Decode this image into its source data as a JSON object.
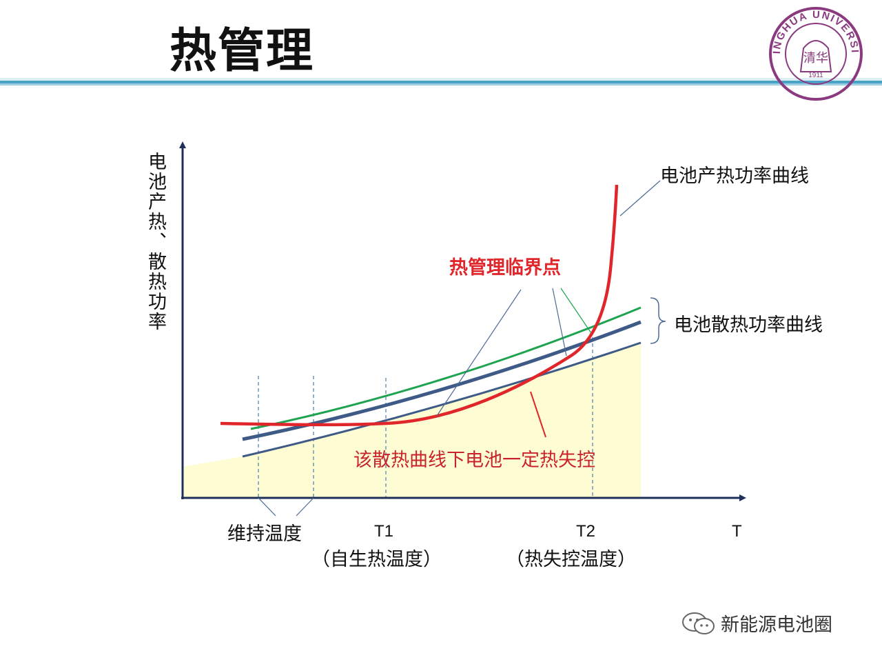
{
  "slide": {
    "title": "热管理",
    "logo_text": "TSINGHUA UNIVERSITY",
    "logo_year": "1911",
    "logo_mark": "清华"
  },
  "diagram": {
    "y_axis_label": "电池产热、散热功率",
    "x_axis_end_label": "T",
    "heat_generation_label": "电池产热功率曲线",
    "heat_dissipation_label": "电池散热功率曲线",
    "critical_point_label": "热管理临界点",
    "runaway_region_label": "该散热曲线下电池一定热失控",
    "maintain_temp_label": "维持温度",
    "t1_label": "T1",
    "t1_desc": "（自生热温度）",
    "t2_label": "T2",
    "t2_desc": "（热失控温度）"
  },
  "watermark": {
    "text": "新能源电池圈"
  },
  "colors": {
    "heat_curve": "#e0262b",
    "dissipation_high": "#1ea450",
    "dissipation_mid": "#3e5a86",
    "dissipation_low": "#3e5a86",
    "fill_region": "#fefcd2",
    "axis": "#1f2f5a",
    "critical_text": "#e0262b",
    "runaway_text": "#c8232c",
    "divider": "#4aa3c7",
    "logo": "#8a3a7e"
  }
}
